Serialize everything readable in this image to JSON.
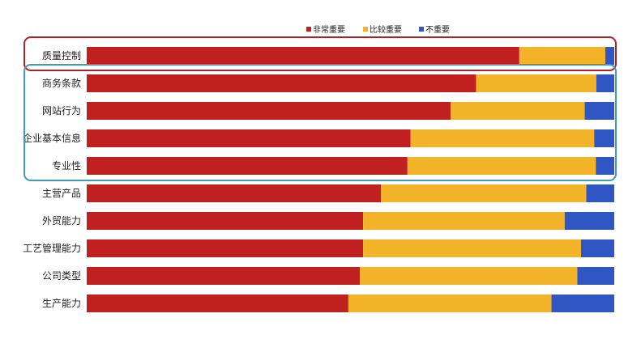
{
  "chart_data": {
    "type": "bar",
    "orientation": "horizontal",
    "stacked": true,
    "normalized": true,
    "categories": [
      "质量控制",
      "商务条款",
      "网站行为",
      "企业基本信息",
      "专业性",
      "主营产品",
      "外贸能力",
      "工艺管理能力",
      "公司类型",
      "生产能力"
    ],
    "series": [
      {
        "name": "非常重要",
        "color": "#c0201f",
        "values": [
          0.82,
          0.738,
          0.69,
          0.614,
          0.608,
          0.558,
          0.524,
          0.524,
          0.518,
          0.496
        ]
      },
      {
        "name": "比较重要",
        "color": "#f2b328",
        "values": [
          0.163,
          0.228,
          0.254,
          0.348,
          0.357,
          0.389,
          0.382,
          0.413,
          0.412,
          0.385
        ]
      },
      {
        "name": "不重要",
        "color": "#2f56c3",
        "values": [
          0.017,
          0.034,
          0.056,
          0.038,
          0.035,
          0.053,
          0.094,
          0.063,
          0.07,
          0.119
        ]
      }
    ],
    "legend_position": "top",
    "grid": false,
    "highlight_groups": [
      {
        "color": "#a8232b",
        "categories": [
          "质量控制"
        ]
      },
      {
        "color": "#3f9bb6",
        "categories": [
          "商务条款",
          "网站行为",
          "企业基本信息",
          "专业性"
        ]
      }
    ]
  }
}
